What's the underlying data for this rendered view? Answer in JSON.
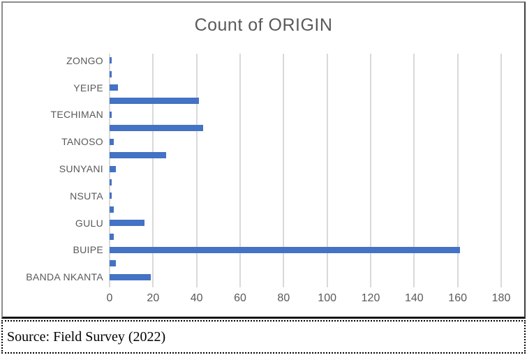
{
  "title": "Count of ORIGIN",
  "source_note": "Source: Field Survey (2022)",
  "colors": {
    "bar": "#4472C4",
    "grid": "#D9D9D9",
    "axis_text": "#595959",
    "title_text": "#595959"
  },
  "chart_data": {
    "type": "bar",
    "orientation": "horizontal",
    "title": "Count of ORIGIN",
    "categories": [
      "ZONGO",
      "",
      "YEIPE",
      "",
      "TECHIMAN",
      "",
      "TANOSO",
      "",
      "SUNYANI",
      "",
      "NSUTA",
      "",
      "GULU",
      "",
      "BUIPE",
      "",
      "BANDA NKANTA"
    ],
    "values": [
      1,
      1,
      4,
      41,
      1,
      43,
      2,
      26,
      3,
      1,
      1,
      2,
      16,
      2,
      161,
      3,
      19
    ],
    "visible_axis_labels": [
      "ZONGO",
      "YEIPE",
      "TECHIMAN",
      "TANOSO",
      "SUNYANI",
      "NSUTA",
      "GULU",
      "BUIPE",
      "BANDA NKANTA"
    ],
    "xlabel": "",
    "ylabel": "",
    "xlim": [
      0,
      180
    ],
    "xticks": [
      0,
      20,
      40,
      60,
      80,
      100,
      120,
      140,
      160,
      180
    ],
    "grid": true,
    "legend": "none"
  }
}
